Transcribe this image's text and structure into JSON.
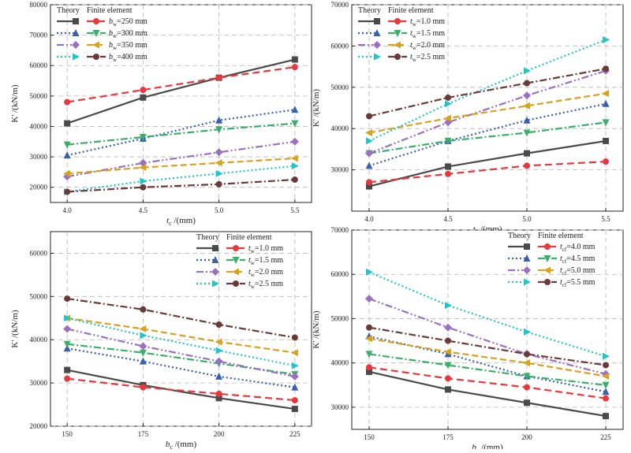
{
  "legend_header": {
    "theory": "Theory",
    "fe": "Finite element"
  },
  "series_styles": [
    {
      "theory_color": "#4a4a4a",
      "theory_dash": "",
      "fe_color": "#e8383d",
      "fe_dash": "9,5",
      "marker": "square",
      "fe_marker": "circle"
    },
    {
      "theory_color": "#3a5fb0",
      "theory_dash": "2,3",
      "fe_color": "#3aae6b",
      "fe_dash": "9,3,2,3",
      "marker": "triangle",
      "fe_marker": "triangle-down"
    },
    {
      "theory_color": "#9b6fc2",
      "theory_dash": "9,3,2,3,2,3",
      "fe_color": "#d9a21b",
      "fe_dash": "8,4",
      "marker": "diamond",
      "fe_marker": "triangle-left"
    },
    {
      "theory_color": "#22c4c8",
      "theory_dash": "2,3",
      "fe_color": "#6b3a38",
      "fe_dash": "9,3,2,3",
      "marker": "triangle-right",
      "fe_marker": "circle"
    }
  ],
  "chart_data": [
    {
      "type": "line",
      "xlabel_main": "t",
      "xlabel_sub": "c",
      "xlabel_rest": " /(mm)",
      "ylabel": "K' /(kN/m)",
      "legend_position": "top-left",
      "grid": true,
      "x": [
        4.0,
        4.5,
        5.0,
        5.5
      ],
      "xticks": [
        "4.0",
        "4.5",
        "5.0",
        "5.5"
      ],
      "ylim": [
        15000,
        80000
      ],
      "yticks": [
        20000,
        30000,
        40000,
        50000,
        60000,
        70000,
        80000
      ],
      "series": [
        {
          "label_main": "b",
          "label_sub": "w",
          "label_rest": "=250 mm",
          "theory": [
            41000,
            49500,
            56000,
            62000
          ],
          "fe": [
            48000,
            52000,
            56000,
            59500
          ]
        },
        {
          "label_main": "b",
          "label_sub": "w",
          "label_rest": "=300 mm",
          "theory": [
            30500,
            36000,
            42000,
            45500
          ],
          "fe": [
            34000,
            36500,
            39000,
            41000
          ]
        },
        {
          "label_main": "b",
          "label_sub": "w",
          "label_rest": "=350 mm",
          "theory": [
            23500,
            28000,
            31500,
            35000
          ],
          "fe": [
            24500,
            26500,
            28000,
            29500
          ]
        },
        {
          "label_main": "b",
          "label_sub": "w",
          "label_rest": "=400 mm",
          "theory": [
            18500,
            22000,
            24500,
            27000
          ],
          "fe": [
            18500,
            20000,
            21000,
            22500
          ]
        }
      ]
    },
    {
      "type": "line",
      "xlabel_main": "t",
      "xlabel_sub": "c",
      "xlabel_rest": " /(mm)",
      "ylabel": "K' /(kN/m)",
      "legend_position": "top-left",
      "grid": true,
      "x": [
        4.0,
        4.5,
        5.0,
        5.5
      ],
      "xticks": [
        "4.0",
        "4.5",
        "5.0",
        "5.5"
      ],
      "ylim": [
        20000,
        70000
      ],
      "yticks": [
        30000,
        40000,
        50000,
        60000,
        70000
      ],
      "series": [
        {
          "label_main": "t",
          "label_sub": "w",
          "label_rest": "=1.0 mm",
          "theory": [
            26000,
            30800,
            34000,
            37000
          ],
          "fe": [
            27000,
            29000,
            31000,
            32000
          ]
        },
        {
          "label_main": "t",
          "label_sub": "w",
          "label_rest": "=1.5 mm",
          "theory": [
            31000,
            37000,
            42000,
            46000
          ],
          "fe": [
            34000,
            37000,
            39000,
            41500
          ]
        },
        {
          "label_main": "t",
          "label_sub": "w",
          "label_rest": "=2.0 mm",
          "theory": [
            34000,
            41500,
            48000,
            54000
          ],
          "fe": [
            39000,
            42500,
            45500,
            48500
          ]
        },
        {
          "label_main": "t",
          "label_sub": "w",
          "label_rest": "=2.5 mm",
          "theory": [
            37000,
            46000,
            54000,
            61500
          ],
          "fe": [
            43000,
            47500,
            51000,
            54500
          ]
        }
      ]
    },
    {
      "type": "line",
      "xlabel_main": "b",
      "xlabel_sub": "c",
      "xlabel_rest": " /(mm)",
      "ylabel": "K' /(kN/m)",
      "legend_position": "top-right",
      "grid": true,
      "x": [
        150,
        175,
        200,
        225
      ],
      "xticks": [
        "150",
        "175",
        "200",
        "225"
      ],
      "ylim": [
        20000,
        65000
      ],
      "yticks": [
        20000,
        30000,
        40000,
        50000,
        60000
      ],
      "series": [
        {
          "label_main": "t",
          "label_sub": "w",
          "label_rest": "=1.0 mm",
          "theory": [
            33000,
            29500,
            26500,
            24000
          ],
          "fe": [
            31000,
            29000,
            27500,
            26000
          ]
        },
        {
          "label_main": "t",
          "label_sub": "w",
          "label_rest": "=1.5 mm",
          "theory": [
            38000,
            35000,
            31500,
            29000
          ],
          "fe": [
            39000,
            37000,
            34500,
            32000
          ]
        },
        {
          "label_main": "t",
          "label_sub": "w",
          "label_rest": "=2.0 mm",
          "theory": [
            42500,
            38500,
            35000,
            31500
          ],
          "fe": [
            45000,
            42500,
            39500,
            37000
          ]
        },
        {
          "label_main": "t",
          "label_sub": "w",
          "label_rest": "=2.5 mm",
          "theory": [
            45000,
            41000,
            37500,
            34000
          ],
          "fe": [
            49500,
            47000,
            43500,
            40500
          ]
        }
      ]
    },
    {
      "type": "line",
      "xlabel_main": "b",
      "xlabel_sub": "c",
      "xlabel_rest": " /(mm)",
      "ylabel": "K' /(kN/m)",
      "legend_position": "top-right",
      "grid": true,
      "x": [
        150,
        175,
        200,
        225
      ],
      "xticks": [
        "150",
        "175",
        "200",
        "225"
      ],
      "ylim": [
        25000,
        70000
      ],
      "yticks": [
        30000,
        40000,
        50000,
        60000,
        70000
      ],
      "series": [
        {
          "label_main": "t",
          "label_sub": "cf",
          "label_rest": "=4.0 mm",
          "theory": [
            38000,
            34000,
            31000,
            28000
          ],
          "fe": [
            39000,
            36500,
            34500,
            32000
          ]
        },
        {
          "label_main": "t",
          "label_sub": "cf",
          "label_rest": "=4.5 mm",
          "theory": [
            46000,
            42000,
            37000,
            33500
          ],
          "fe": [
            42000,
            39500,
            37000,
            35000
          ]
        },
        {
          "label_main": "t",
          "label_sub": "cf",
          "label_rest": "=5.0 mm",
          "theory": [
            54500,
            48000,
            42000,
            37500
          ],
          "fe": [
            45500,
            42500,
            40000,
            37000
          ]
        },
        {
          "label_main": "t",
          "label_sub": "cf",
          "label_rest": "=5.5 mm",
          "theory": [
            60500,
            53000,
            47000,
            41500
          ],
          "fe": [
            48000,
            45000,
            42000,
            39500
          ]
        }
      ]
    }
  ]
}
